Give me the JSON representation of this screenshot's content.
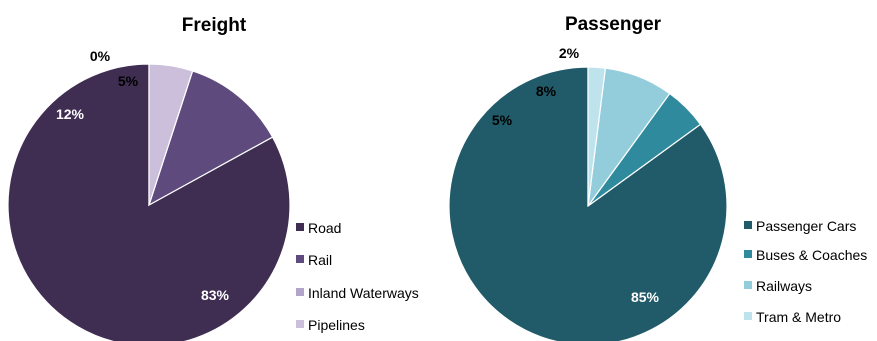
{
  "chart_data": [
    {
      "type": "pie",
      "title": "Freight",
      "categories": [
        "Road",
        "Rail",
        "Inland Waterways",
        "Pipelines"
      ],
      "values": [
        83,
        12,
        0,
        5
      ],
      "labels": [
        "83%",
        "12%",
        "0%",
        "5%"
      ],
      "colors": [
        "#3f2d52",
        "#5e4a7d",
        "#b3a4cc",
        "#cbbfdc"
      ],
      "label_colors": [
        "#ffffff",
        "#ffffff",
        "#000000",
        "#000000"
      ],
      "legend_position": "right"
    },
    {
      "type": "pie",
      "title": "Passenger",
      "categories": [
        "Passenger Cars",
        "Buses & Coaches",
        "Railways",
        "Tram & Metro"
      ],
      "values": [
        85,
        5,
        8,
        2
      ],
      "labels": [
        "85%",
        "5%",
        "8%",
        "2%"
      ],
      "colors": [
        "#215a69",
        "#2f8a9e",
        "#93cddc",
        "#bfe3ec"
      ],
      "label_colors": [
        "#ffffff",
        "#000000",
        "#000000",
        "#000000"
      ],
      "legend_position": "right"
    }
  ]
}
